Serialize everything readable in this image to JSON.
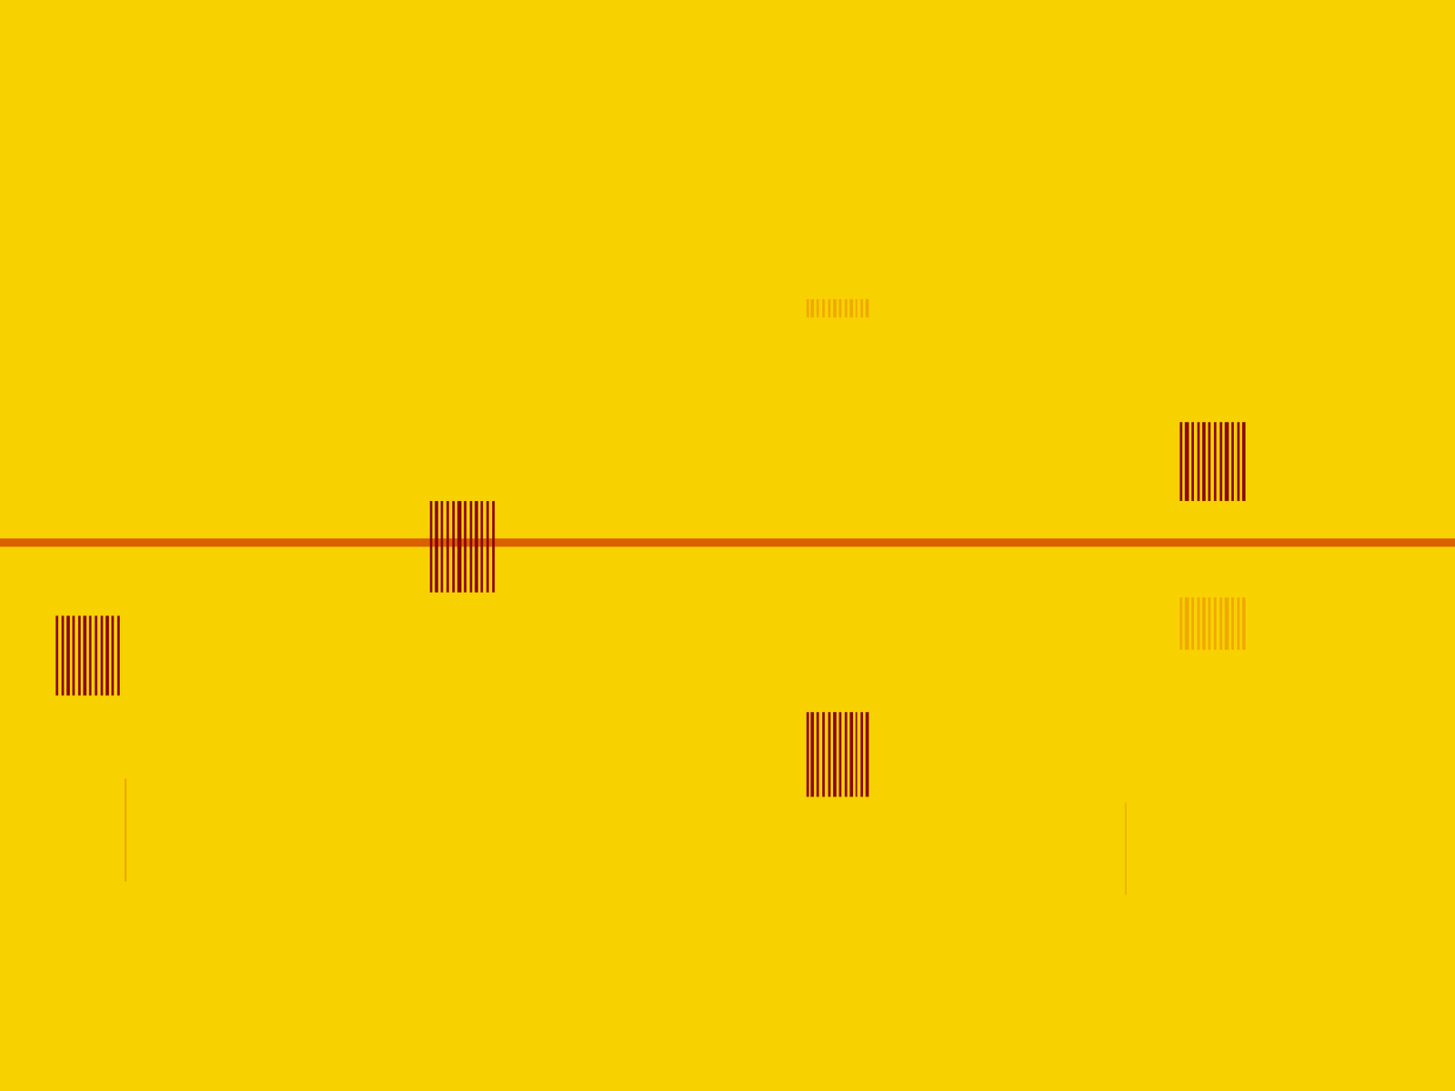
{
  "chart_data": {
    "type": "spectrogram",
    "tick_labels": false,
    "xlim": [
      0,
      100
    ],
    "ylim": [
      0,
      100
    ],
    "clim": [
      0,
      1
    ],
    "background": 0.1,
    "carrier": {
      "freq": 50.3,
      "width": 0.7,
      "level": 0.6
    },
    "bursts": [
      {
        "start": 3.8,
        "end": 8.4,
        "freq_low": 36.2,
        "freq_high": 43.5,
        "stripes": 12,
        "level": 1.0
      },
      {
        "start": 29.5,
        "end": 34.2,
        "freq_low": 45.7,
        "freq_high": 54.1,
        "stripes": 12,
        "level": 1.0
      },
      {
        "start": 55.4,
        "end": 59.9,
        "freq_low": 26.9,
        "freq_high": 34.7,
        "stripes": 12,
        "level": 1.0
      },
      {
        "start": 55.4,
        "end": 59.9,
        "freq_low": 70.9,
        "freq_high": 72.6,
        "stripes": 12,
        "level": 0.35
      },
      {
        "start": 81.1,
        "end": 85.8,
        "freq_low": 54.1,
        "freq_high": 61.3,
        "stripes": 12,
        "level": 1.0
      },
      {
        "start": 81.1,
        "end": 85.8,
        "freq_low": 40.5,
        "freq_high": 45.2,
        "stripes": 12,
        "level": 0.35
      }
    ],
    "spurs": [
      {
        "time": 8.6,
        "freq_low": 19.2,
        "freq_high": 28.6,
        "level": 0.4
      },
      {
        "time": 77.4,
        "freq_low": 17.9,
        "freq_high": 26.4,
        "level": 0.3
      }
    ]
  }
}
